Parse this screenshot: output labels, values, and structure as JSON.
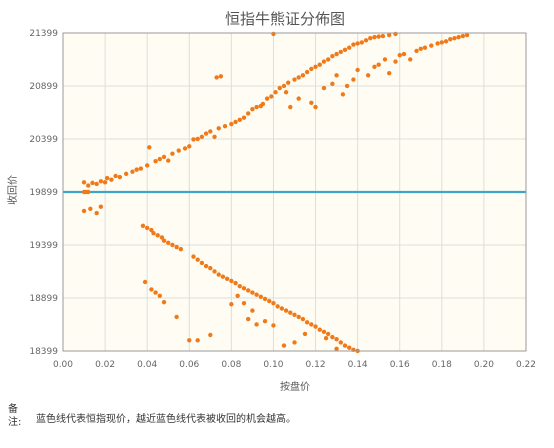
{
  "chart_data": {
    "type": "scatter",
    "title": "恒指牛熊证分佈图",
    "xlabel": "按盘价",
    "ylabel": "收回价",
    "xlim": [
      0.0,
      0.22
    ],
    "ylim": [
      18399,
      21399
    ],
    "x_ticks": [
      "0.00",
      "0.02",
      "0.04",
      "0.06",
      "0.08",
      "0.10",
      "0.12",
      "0.14",
      "0.16",
      "0.18",
      "0.20",
      "0.22"
    ],
    "y_ticks": [
      "18399",
      "18899",
      "19399",
      "19899",
      "20399",
      "20899",
      "21399"
    ],
    "grid": true,
    "reference_line": {
      "value": 19899,
      "color": "#3ca6c4"
    },
    "point_color": "#f07a1a",
    "series": [
      {
        "points": [
          [
            0.01,
            19899
          ],
          [
            0.011,
            19899
          ],
          [
            0.012,
            19899
          ],
          [
            0.01,
            19990
          ],
          [
            0.012,
            19960
          ],
          [
            0.014,
            19985
          ],
          [
            0.016,
            19975
          ],
          [
            0.018,
            20000
          ],
          [
            0.02,
            19990
          ],
          [
            0.021,
            20030
          ],
          [
            0.023,
            20015
          ],
          [
            0.025,
            20050
          ],
          [
            0.027,
            20040
          ],
          [
            0.03,
            20070
          ],
          [
            0.033,
            20090
          ],
          [
            0.035,
            20110
          ],
          [
            0.037,
            20120
          ],
          [
            0.04,
            20150
          ],
          [
            0.041,
            20320
          ],
          [
            0.044,
            20190
          ],
          [
            0.046,
            20210
          ],
          [
            0.048,
            20230
          ],
          [
            0.05,
            20195
          ],
          [
            0.052,
            20260
          ],
          [
            0.055,
            20290
          ],
          [
            0.058,
            20310
          ],
          [
            0.06,
            20330
          ],
          [
            0.062,
            20395
          ],
          [
            0.064,
            20400
          ],
          [
            0.066,
            20420
          ],
          [
            0.068,
            20450
          ],
          [
            0.07,
            20470
          ],
          [
            0.072,
            20420
          ],
          [
            0.074,
            20500
          ],
          [
            0.073,
            20980
          ],
          [
            0.075,
            20990
          ],
          [
            0.077,
            20520
          ],
          [
            0.08,
            20540
          ],
          [
            0.082,
            20560
          ],
          [
            0.084,
            20580
          ],
          [
            0.086,
            20600
          ],
          [
            0.088,
            20640
          ],
          [
            0.09,
            20680
          ],
          [
            0.092,
            20700
          ],
          [
            0.094,
            20710
          ],
          [
            0.095,
            20730
          ],
          [
            0.097,
            20780
          ],
          [
            0.099,
            20800
          ],
          [
            0.101,
            20840
          ],
          [
            0.103,
            20880
          ],
          [
            0.1,
            21390
          ],
          [
            0.105,
            20900
          ],
          [
            0.107,
            20930
          ],
          [
            0.11,
            20960
          ],
          [
            0.112,
            20980
          ],
          [
            0.114,
            21000
          ],
          [
            0.116,
            21030
          ],
          [
            0.118,
            21060
          ],
          [
            0.12,
            21080
          ],
          [
            0.122,
            21100
          ],
          [
            0.124,
            21130
          ],
          [
            0.126,
            21150
          ],
          [
            0.128,
            21180
          ],
          [
            0.13,
            21200
          ],
          [
            0.132,
            21220
          ],
          [
            0.134,
            21240
          ],
          [
            0.136,
            21260
          ],
          [
            0.138,
            21290
          ],
          [
            0.14,
            21300
          ],
          [
            0.142,
            21310
          ],
          [
            0.144,
            21330
          ],
          [
            0.146,
            21350
          ],
          [
            0.148,
            21360
          ],
          [
            0.15,
            21365
          ],
          [
            0.152,
            21370
          ],
          [
            0.155,
            21380
          ],
          [
            0.158,
            21390
          ],
          [
            0.106,
            20840
          ],
          [
            0.108,
            20700
          ],
          [
            0.112,
            20780
          ],
          [
            0.118,
            20740
          ],
          [
            0.12,
            20700
          ],
          [
            0.124,
            20880
          ],
          [
            0.128,
            20920
          ],
          [
            0.13,
            21000
          ],
          [
            0.133,
            20820
          ],
          [
            0.135,
            20900
          ],
          [
            0.138,
            20960
          ],
          [
            0.14,
            21050
          ],
          [
            0.145,
            21000
          ],
          [
            0.148,
            21080
          ],
          [
            0.15,
            21100
          ],
          [
            0.153,
            21150
          ],
          [
            0.155,
            21020
          ],
          [
            0.158,
            21130
          ],
          [
            0.16,
            21190
          ],
          [
            0.162,
            21200
          ],
          [
            0.165,
            21150
          ],
          [
            0.168,
            21230
          ],
          [
            0.17,
            21250
          ],
          [
            0.172,
            21260
          ],
          [
            0.175,
            21280
          ],
          [
            0.178,
            21300
          ],
          [
            0.18,
            21310
          ],
          [
            0.182,
            21320
          ],
          [
            0.184,
            21340
          ],
          [
            0.186,
            21350
          ],
          [
            0.188,
            21360
          ],
          [
            0.19,
            21370
          ],
          [
            0.192,
            21380
          ],
          [
            0.01,
            19720
          ],
          [
            0.013,
            19740
          ],
          [
            0.016,
            19700
          ],
          [
            0.018,
            19760
          ],
          [
            0.038,
            19580
          ],
          [
            0.04,
            19560
          ],
          [
            0.042,
            19540
          ],
          [
            0.043,
            19510
          ],
          [
            0.045,
            19490
          ],
          [
            0.047,
            19470
          ],
          [
            0.048,
            19440
          ],
          [
            0.05,
            19420
          ],
          [
            0.052,
            19400
          ],
          [
            0.054,
            19380
          ],
          [
            0.056,
            19360
          ],
          [
            0.062,
            19290
          ],
          [
            0.064,
            19260
          ],
          [
            0.066,
            19230
          ],
          [
            0.068,
            19200
          ],
          [
            0.07,
            19180
          ],
          [
            0.072,
            19150
          ],
          [
            0.074,
            19120
          ],
          [
            0.076,
            19100
          ],
          [
            0.078,
            19080
          ],
          [
            0.08,
            19060
          ],
          [
            0.082,
            19040
          ],
          [
            0.084,
            19010
          ],
          [
            0.086,
            18990
          ],
          [
            0.088,
            18970
          ],
          [
            0.09,
            18950
          ],
          [
            0.092,
            18930
          ],
          [
            0.094,
            18910
          ],
          [
            0.096,
            18890
          ],
          [
            0.098,
            18870
          ],
          [
            0.1,
            18850
          ],
          [
            0.102,
            18820
          ],
          [
            0.104,
            18800
          ],
          [
            0.106,
            18780
          ],
          [
            0.108,
            18760
          ],
          [
            0.11,
            18740
          ],
          [
            0.112,
            18720
          ],
          [
            0.114,
            18700
          ],
          [
            0.116,
            18670
          ],
          [
            0.118,
            18650
          ],
          [
            0.12,
            18630
          ],
          [
            0.122,
            18600
          ],
          [
            0.124,
            18580
          ],
          [
            0.126,
            18560
          ],
          [
            0.128,
            18530
          ],
          [
            0.13,
            18510
          ],
          [
            0.132,
            18480
          ],
          [
            0.134,
            18450
          ],
          [
            0.136,
            18430
          ],
          [
            0.138,
            18410
          ],
          [
            0.14,
            18400
          ],
          [
            0.039,
            19050
          ],
          [
            0.042,
            18980
          ],
          [
            0.044,
            18950
          ],
          [
            0.046,
            18920
          ],
          [
            0.048,
            18860
          ],
          [
            0.054,
            18720
          ],
          [
            0.06,
            18500
          ],
          [
            0.064,
            18500
          ],
          [
            0.07,
            18550
          ],
          [
            0.08,
            18840
          ],
          [
            0.083,
            18920
          ],
          [
            0.086,
            18850
          ],
          [
            0.088,
            18700
          ],
          [
            0.09,
            18780
          ],
          [
            0.092,
            18650
          ],
          [
            0.096,
            18680
          ],
          [
            0.1,
            18640
          ],
          [
            0.105,
            18450
          ],
          [
            0.11,
            18480
          ],
          [
            0.115,
            18560
          ],
          [
            0.125,
            18520
          ],
          [
            0.13,
            18420
          ]
        ]
      }
    ]
  },
  "note": {
    "label": "备\n注:",
    "text": "蓝色线代表恒指现价，越近蓝色线代表被收回的机会越高。"
  }
}
